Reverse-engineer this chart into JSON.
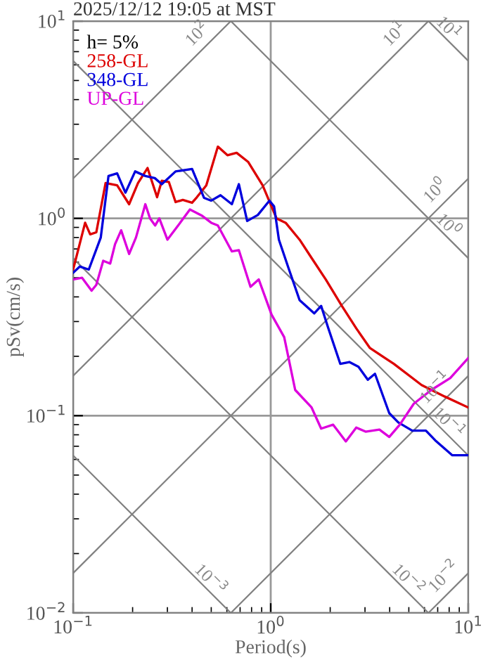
{
  "chart_data": {
    "type": "line",
    "title": "2025/12/12 19:05 at MST",
    "xlabel": "Period(s)",
    "ylabel": "pSv(cm/s)",
    "legend_title": "h= 5%",
    "legend": "top left",
    "log": "xy",
    "grid": true,
    "marker": "none",
    "xlim": [
      0.1,
      10
    ],
    "ylim": [
      0.01,
      10
    ],
    "xticks": [
      {
        "value": 0.1,
        "label": "10$^{−1}$"
      },
      {
        "value": 1,
        "label": "10$^{0}$"
      },
      {
        "value": 10,
        "label": "10$^{1}$"
      }
    ],
    "yticks": [
      {
        "value": 0.01,
        "label": "10$^{−2}$"
      },
      {
        "value": 0.1,
        "label": "10$^{−1}$"
      },
      {
        "value": 1,
        "label": "10$^{0}$"
      },
      {
        "value": 10,
        "label": "10$^{1}$"
      }
    ],
    "series": [
      {
        "color": "#808080",
        "x": [
          6.283,
          10
        ],
        "values": [
          10,
          6.283
        ]
      },
      {
        "color": "#808080",
        "x": [
          0.6283,
          10
        ],
        "values": [
          10,
          0.6283
        ]
      },
      {
        "color": "#808080",
        "x": [
          0.1,
          10
        ],
        "values": [
          6.283,
          0.06283
        ]
      },
      {
        "color": "#808080",
        "x": [
          0.1,
          6.283
        ],
        "values": [
          0.6283,
          0.01
        ]
      },
      {
        "color": "#808080",
        "x": [
          0.1,
          0.6283
        ],
        "values": [
          0.06283,
          0.01
        ]
      },
      {
        "color": "#808080",
        "x": [
          0.1,
          0.6283
        ],
        "values": [
          1.592,
          10
        ]
      },
      {
        "color": "#808080",
        "x": [
          0.1,
          6.283
        ],
        "values": [
          0.1592,
          10
        ]
      },
      {
        "color": "#808080",
        "x": [
          0.1,
          10
        ],
        "values": [
          0.01592,
          1.592
        ]
      },
      {
        "color": "#808080",
        "x": [
          0.6283,
          10
        ],
        "values": [
          0.01,
          0.1592
        ]
      },
      {
        "color": "#808080",
        "x": [
          6.283,
          10
        ],
        "values": [
          0.01,
          0.01592
        ]
      },
      {
        "name": "258-GL",
        "color": "#dd0000",
        "x": [
          0.1,
          0.115,
          0.122,
          0.131,
          0.146,
          0.167,
          0.192,
          0.213,
          0.238,
          0.266,
          0.281,
          0.305,
          0.33,
          0.359,
          0.4,
          0.423,
          0.472,
          0.54,
          0.604,
          0.672,
          0.77,
          0.91,
          1.07,
          1.19,
          1.4,
          1.61,
          1.9,
          2.29,
          2.71,
          3.18,
          4.2,
          5.8,
          7.6,
          10
        ],
        "values": [
          0.55,
          0.95,
          0.83,
          0.85,
          1.51,
          1.47,
          1.18,
          1.51,
          1.8,
          1.28,
          1.55,
          1.53,
          1.21,
          1.24,
          1.2,
          1.28,
          1.47,
          2.31,
          2.09,
          2.15,
          1.93,
          1.47,
          1.0,
          0.95,
          0.78,
          0.63,
          0.49,
          0.36,
          0.277,
          0.22,
          0.183,
          0.143,
          0.125,
          0.11
        ]
      },
      {
        "name": "348-GL",
        "color": "#0000dd",
        "x": [
          0.1,
          0.108,
          0.12,
          0.138,
          0.151,
          0.167,
          0.184,
          0.206,
          0.232,
          0.259,
          0.281,
          0.33,
          0.4,
          0.46,
          0.5,
          0.557,
          0.636,
          0.69,
          0.76,
          0.86,
          0.985,
          1.04,
          1.1,
          1.23,
          1.4,
          1.66,
          1.8,
          1.95,
          2.25,
          2.5,
          2.78,
          3.1,
          3.37,
          3.98,
          4.42,
          5.2,
          6.1,
          6.8,
          8.3,
          10
        ],
        "values": [
          0.53,
          0.57,
          0.55,
          0.8,
          1.64,
          1.69,
          1.35,
          1.73,
          1.64,
          1.6,
          1.49,
          1.73,
          1.78,
          1.27,
          1.23,
          1.31,
          1.18,
          1.49,
          0.97,
          1.04,
          1.23,
          1.15,
          0.78,
          0.56,
          0.385,
          0.33,
          0.36,
          0.28,
          0.183,
          0.187,
          0.177,
          0.152,
          0.163,
          0.103,
          0.0925,
          0.084,
          0.084,
          0.075,
          0.063,
          0.063
        ]
      },
      {
        "name": "UP-GL",
        "color": "#dd00dd",
        "x": [
          0.1,
          0.111,
          0.124,
          0.131,
          0.142,
          0.154,
          0.163,
          0.175,
          0.192,
          0.208,
          0.232,
          0.245,
          0.26,
          0.273,
          0.3,
          0.34,
          0.39,
          0.45,
          0.5,
          0.54,
          0.636,
          0.69,
          0.79,
          0.87,
          1.01,
          1.17,
          1.33,
          1.61,
          1.8,
          2.07,
          2.4,
          2.71,
          3.02,
          3.55,
          3.98,
          4.5,
          5.3,
          6.5,
          8.1,
          10
        ],
        "values": [
          0.49,
          0.5,
          0.43,
          0.46,
          0.61,
          0.59,
          0.74,
          0.87,
          0.66,
          0.8,
          1.18,
          1.0,
          0.92,
          1.0,
          0.78,
          0.92,
          1.11,
          1.03,
          0.95,
          0.92,
          0.68,
          0.69,
          0.45,
          0.49,
          0.325,
          0.25,
          0.135,
          0.11,
          0.086,
          0.09,
          0.074,
          0.087,
          0.083,
          0.085,
          0.078,
          0.09,
          0.115,
          0.135,
          0.155,
          0.196
        ]
      }
    ],
    "annotations": [
      {
        "text": "10$^{1}$",
        "x": 7.7,
        "y": 8.16
      },
      {
        "text": "10$^{0}$",
        "x": 7.7,
        "y": 0.816
      },
      {
        "text": "10$^{−1}$",
        "x": 7.7,
        "y": 0.0816
      },
      {
        "text": "10$^{−2}$",
        "x": 4.8,
        "y": 0.0131
      },
      {
        "text": "10$^{−3}$",
        "x": 0.48,
        "y": 0.0131
      },
      {
        "text": "10$^{2}$",
        "x": 0.48,
        "y": 7.64
      },
      {
        "text": "10$^{1}$",
        "x": 4.8,
        "y": 7.64
      },
      {
        "text": "10$^{0}$",
        "x": 7.7,
        "y": 1.226
      },
      {
        "text": "10$^{−1}$",
        "x": 7.7,
        "y": 0.1226
      },
      {
        "text": "10$^{−2}$",
        "x": 8.5,
        "y": 0.01353
      }
    ]
  }
}
